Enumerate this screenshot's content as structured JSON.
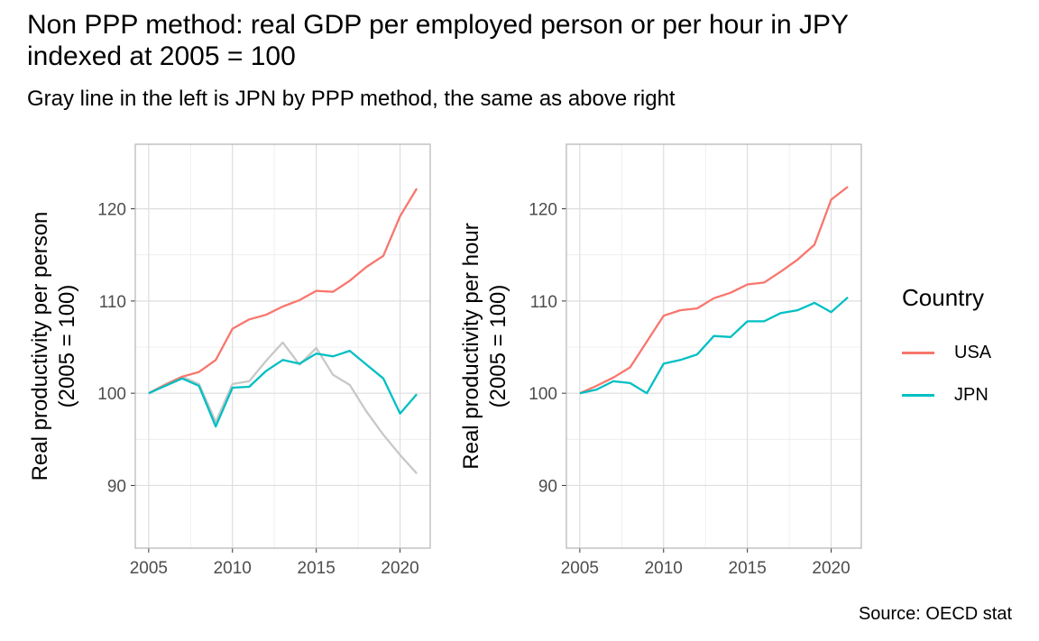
{
  "title": "Non PPP method: real GDP per employed person or per hour in JPY\nindexed at 2005 = 100",
  "subtitle": "Gray line in the left is JPN by PPP method, the same as above right",
  "caption": "Source: OECD stat",
  "legend": {
    "title": "Country",
    "items": [
      {
        "label": "USA",
        "color": "#F8766D"
      },
      {
        "label": "JPN",
        "color": "#00BFC4"
      }
    ]
  },
  "chart_data": [
    {
      "type": "line",
      "ylabel": "Real productivity per person\n(2005 = 100)",
      "xlabel": "",
      "xlim": [
        2004.2,
        2021.8
      ],
      "ylim": [
        83.2,
        127.0
      ],
      "xticks": [
        2005,
        2010,
        2015,
        2020
      ],
      "yticks": [
        90,
        100,
        110,
        120
      ],
      "grid": true,
      "x": [
        2005,
        2006,
        2007,
        2008,
        2009,
        2010,
        2011,
        2012,
        2013,
        2014,
        2015,
        2016,
        2017,
        2018,
        2019,
        2020,
        2021
      ],
      "series": [
        {
          "name": "USA",
          "color": "#F8766D",
          "values": [
            100.0,
            100.9,
            101.8,
            102.3,
            103.6,
            107.0,
            108.0,
            108.5,
            109.4,
            110.1,
            111.1,
            111.0,
            112.2,
            113.7,
            114.9,
            119.2,
            122.2
          ]
        },
        {
          "name": "JPN",
          "color": "#00BFC4",
          "values": [
            100.0,
            100.8,
            101.6,
            100.8,
            96.4,
            100.6,
            100.7,
            102.4,
            103.6,
            103.2,
            104.3,
            104.0,
            104.6,
            103.1,
            101.6,
            97.8,
            99.9
          ]
        },
        {
          "name": "",
          "color": "#C8C8C8",
          "values": [
            100.0,
            101.0,
            101.8,
            101.0,
            96.9,
            101.0,
            101.3,
            103.5,
            105.5,
            103.1,
            104.9,
            102.0,
            100.9,
            98.0,
            95.5,
            93.3,
            91.3
          ]
        }
      ]
    },
    {
      "type": "line",
      "ylabel": "Real productivity per hour\n(2005 = 100)",
      "xlabel": "",
      "xlim": [
        2004.2,
        2021.8
      ],
      "ylim": [
        83.2,
        127.0
      ],
      "xticks": [
        2005,
        2010,
        2015,
        2020
      ],
      "yticks": [
        90,
        100,
        110,
        120
      ],
      "grid": true,
      "x": [
        2005,
        2006,
        2007,
        2008,
        2009,
        2010,
        2011,
        2012,
        2013,
        2014,
        2015,
        2016,
        2017,
        2018,
        2019,
        2020,
        2021
      ],
      "series": [
        {
          "name": "USA",
          "color": "#F8766D",
          "values": [
            100.0,
            100.8,
            101.7,
            102.8,
            105.6,
            108.4,
            109.0,
            109.2,
            110.3,
            110.9,
            111.8,
            112.0,
            113.2,
            114.5,
            116.1,
            121.0,
            122.4
          ]
        },
        {
          "name": "JPN",
          "color": "#00BFC4",
          "values": [
            100.0,
            100.4,
            101.3,
            101.1,
            100.0,
            103.2,
            103.6,
            104.2,
            106.2,
            106.1,
            107.8,
            107.8,
            108.7,
            109.0,
            109.8,
            108.8,
            110.4
          ]
        }
      ]
    }
  ]
}
